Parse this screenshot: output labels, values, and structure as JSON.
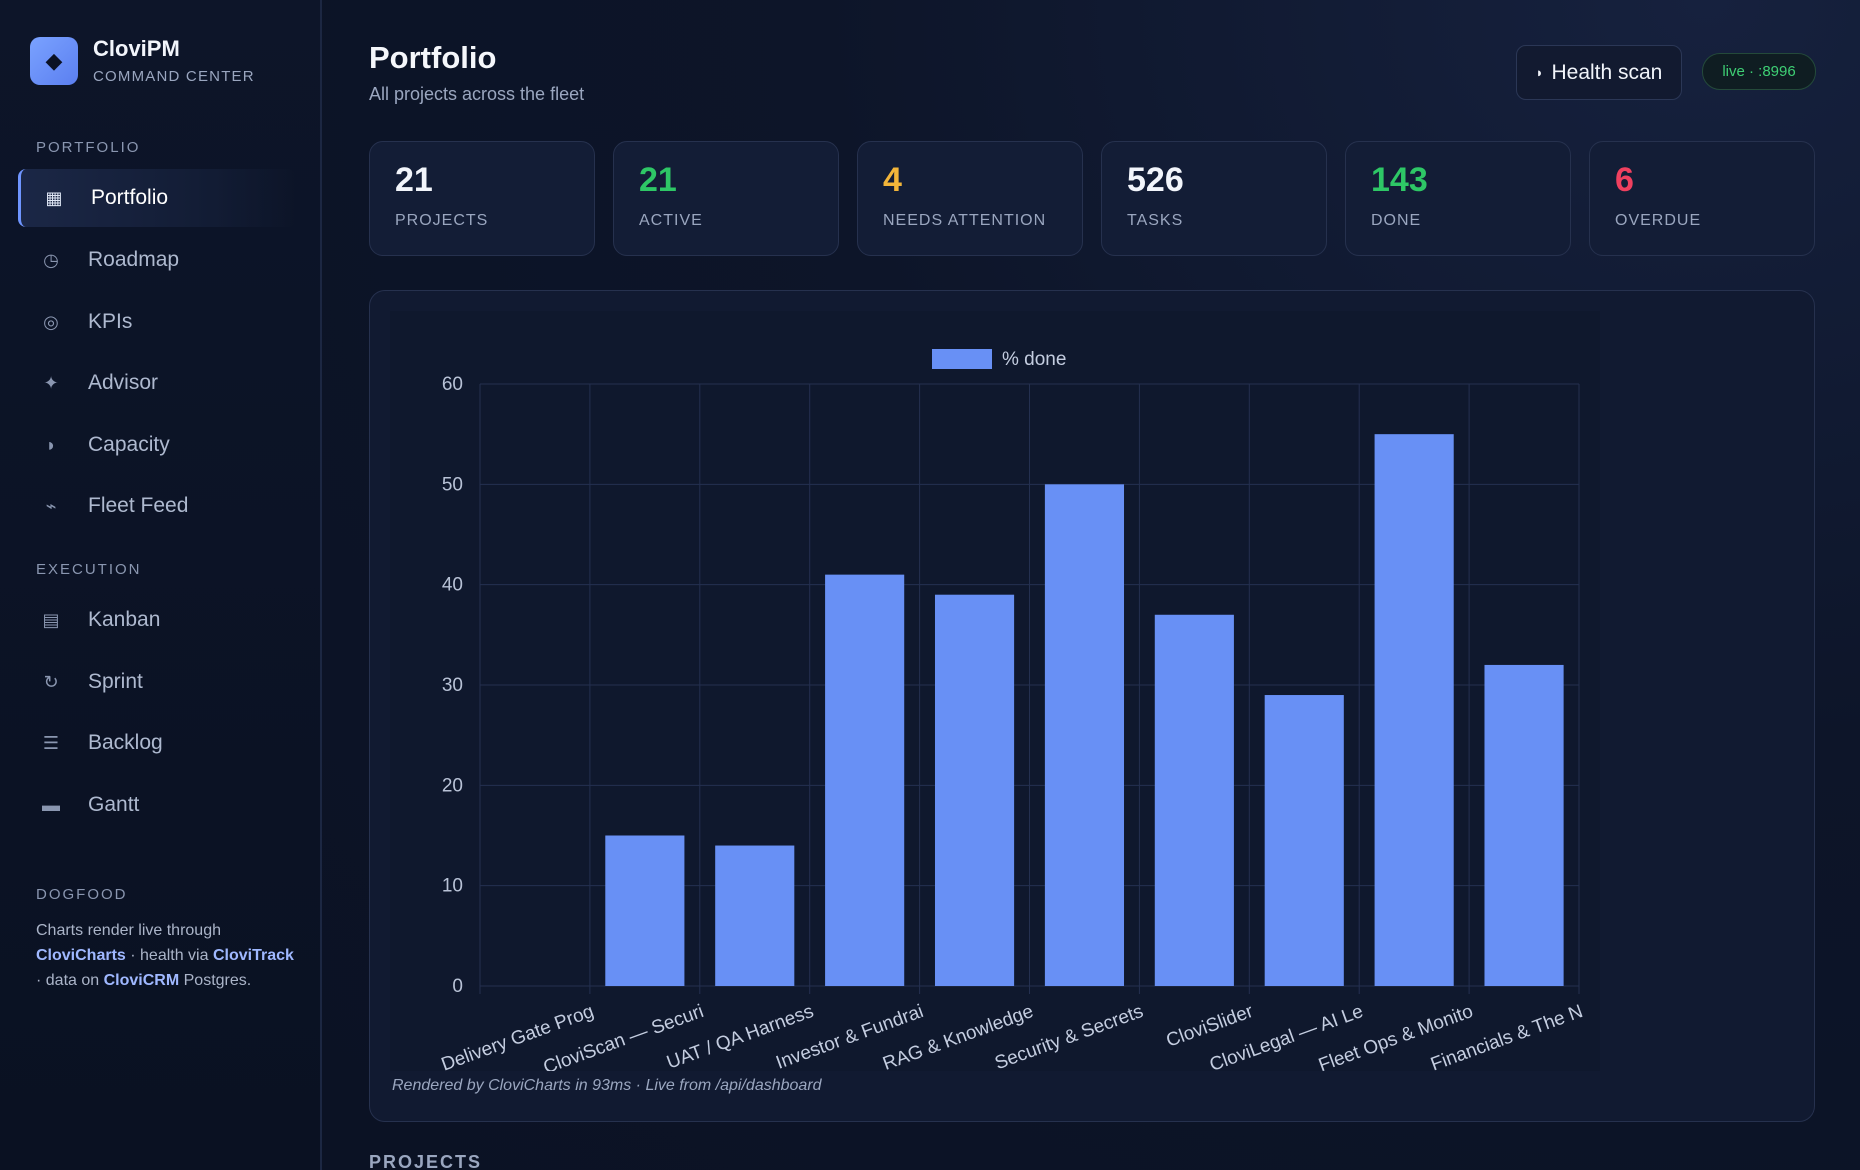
{
  "brand": {
    "logo_glyph": "◆",
    "name": "CloviPM",
    "subtitle": "COMMAND CENTER"
  },
  "sidebar": {
    "portfolio_label": "PORTFOLIO",
    "portfolio_items": [
      {
        "icon": "▦",
        "icon_name": "grid-icon",
        "label": "Portfolio",
        "active": true
      },
      {
        "icon": "◷",
        "icon_name": "clock-icon",
        "label": "Roadmap"
      },
      {
        "icon": "◎",
        "icon_name": "target-icon",
        "label": "KPIs"
      },
      {
        "icon": "✦",
        "icon_name": "sparkle-icon",
        "label": "Advisor"
      },
      {
        "icon": "◗",
        "icon_name": "half-circle-icon",
        "label": "Capacity"
      },
      {
        "icon": "⌁",
        "icon_name": "pulse-icon",
        "label": "Fleet Feed"
      }
    ],
    "execution_label": "EXECUTION",
    "execution_items": [
      {
        "icon": "▤",
        "icon_name": "board-icon",
        "label": "Kanban"
      },
      {
        "icon": "↻",
        "icon_name": "cycle-icon",
        "label": "Sprint"
      },
      {
        "icon": "☰",
        "icon_name": "list-icon",
        "label": "Backlog"
      },
      {
        "icon": "▬",
        "icon_name": "bar-icon",
        "label": "Gantt"
      }
    ],
    "dogfood_label": "DOGFOOD",
    "dogfood": {
      "t1": "Charts render live through ",
      "b1": "CloviCharts",
      "t2": " · health via ",
      "b2": "CloviTrack",
      "t3": " · data on ",
      "b3": "CloviCRM",
      "t4": " Postgres."
    }
  },
  "header": {
    "title": "Portfolio",
    "subtitle": "All projects across the fleet",
    "health_icon": "◗",
    "health_label": "Health scan",
    "live_badge": "live · :8996"
  },
  "stats": [
    {
      "value": "21",
      "label": "PROJECTS",
      "color": "#f2f5fb"
    },
    {
      "value": "21",
      "label": "ACTIVE",
      "color": "#2ec766"
    },
    {
      "value": "4",
      "label": "NEEDS ATTENTION",
      "color": "#f2b53a"
    },
    {
      "value": "526",
      "label": "TASKS",
      "color": "#f2f5fb"
    },
    {
      "value": "143",
      "label": "DONE",
      "color": "#2ec766"
    },
    {
      "value": "6",
      "label": "OVERDUE",
      "color": "#f0405f"
    }
  ],
  "chart_data": {
    "type": "bar",
    "categories": [
      "Delivery Gate Prog",
      "CloviScan — Securi",
      "UAT / QA Harness",
      "Investor & Fundrai",
      "RAG & Knowledge",
      "Security & Secrets",
      "CloviSlider",
      "CloviLegal — AI Le",
      "Fleet Ops & Monito",
      "Financials & The N"
    ],
    "series": [
      {
        "name": "% done",
        "values": [
          0,
          15,
          14,
          41,
          39,
          50,
          37,
          29,
          55,
          32
        ]
      }
    ],
    "ylim": [
      0,
      60
    ],
    "yticks": [
      0,
      10,
      20,
      30,
      40,
      50,
      60
    ],
    "grid": true,
    "legend": "top-center",
    "bar_color": "#6890f5"
  },
  "chart_caption": "Rendered by CloviCharts in 93ms · Live from /api/dashboard",
  "projects_label": "PROJECTS"
}
